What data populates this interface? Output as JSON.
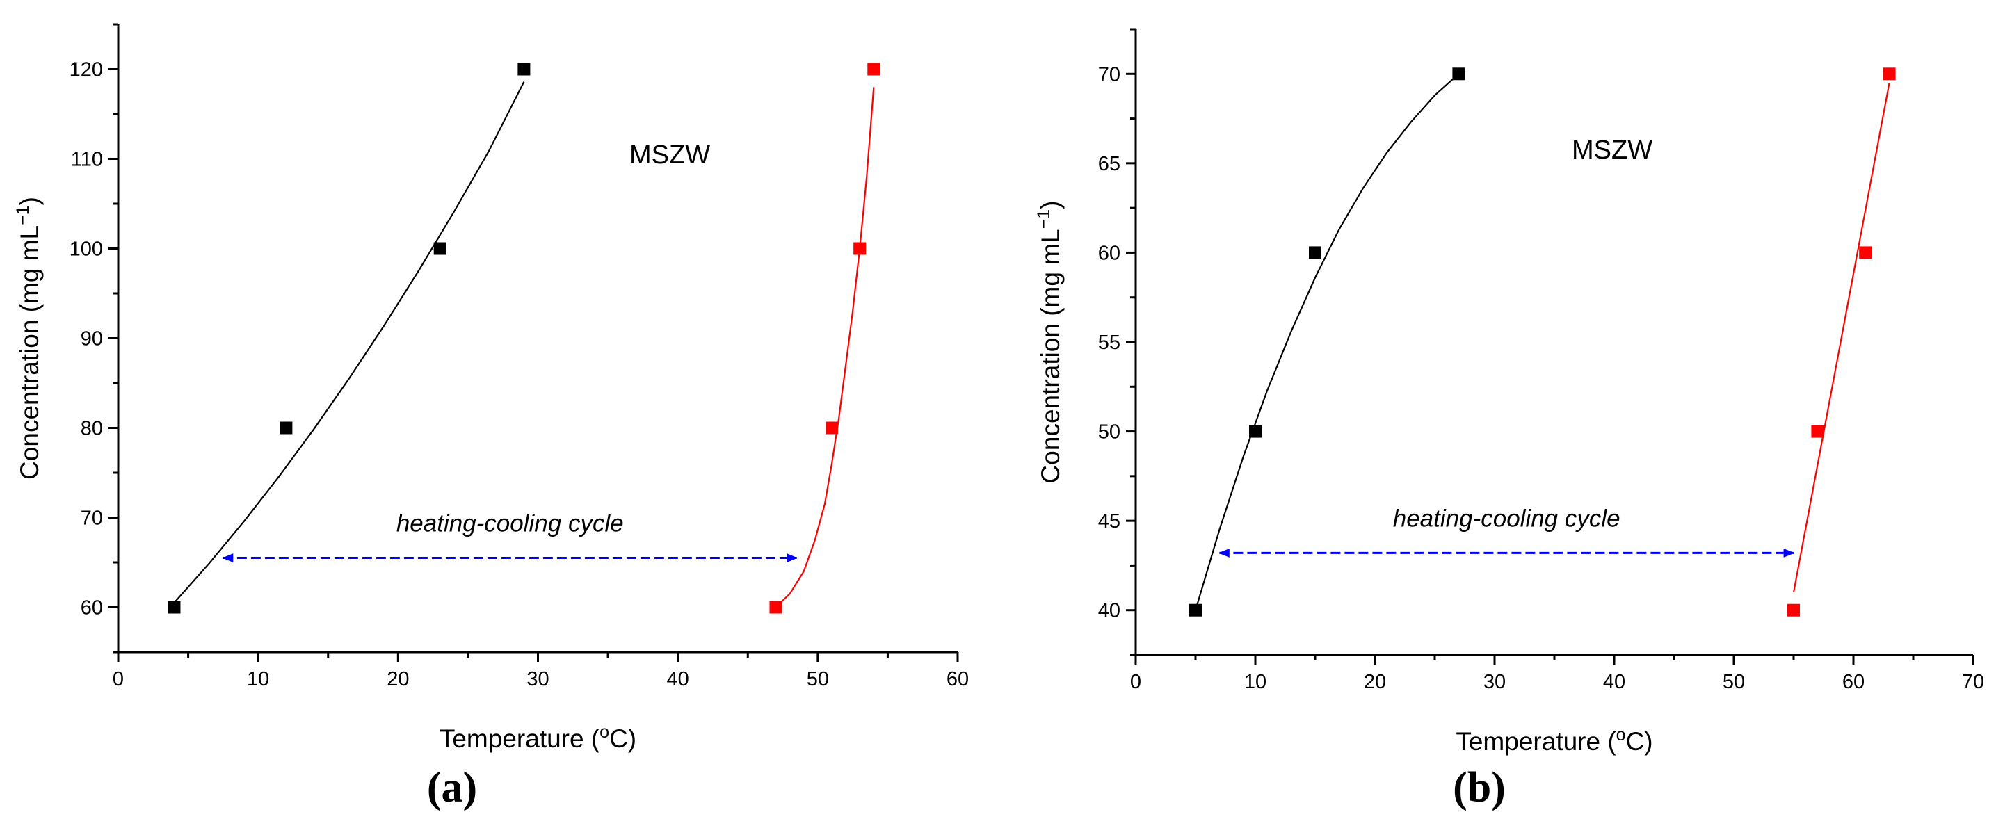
{
  "chart_data": [
    {
      "id": "a",
      "type": "scatter",
      "panel_label": "(a)",
      "xlabel": "Temperature (",
      "xlabel_sup": "o",
      "xlabel_suffix": "C)",
      "ylabel": "Concentration (mg mL",
      "ylabel_sup": "−1",
      "ylabel_suffix": ")",
      "xlim": [
        0,
        60
      ],
      "ylim": [
        55,
        125
      ],
      "xticks": [
        0,
        10,
        20,
        30,
        40,
        50,
        60
      ],
      "yticks": [
        60,
        70,
        80,
        90,
        100,
        110,
        120
      ],
      "annotation": "MSZW",
      "cycle_label": "heating-cooling cycle",
      "cycle_arrow": {
        "x": [
          7.5,
          48.5
        ],
        "y": 65.5,
        "color": "#0000ff"
      },
      "series": [
        {
          "name": "black",
          "color": "#000000",
          "x": [
            4,
            12,
            23,
            29
          ],
          "y": [
            60,
            80,
            100,
            120
          ],
          "fit": {
            "x": [
              4,
              6.5,
              9,
              11.5,
              14,
              16.5,
              19,
              21.5,
              24,
              26.5,
              29
            ],
            "y": [
              60.5,
              64.9,
              69.6,
              74.6,
              79.9,
              85.5,
              91.4,
              97.6,
              104.1,
              110.9,
              118.6
            ]
          }
        },
        {
          "name": "red",
          "color": "#ff0000",
          "x": [
            47,
            51,
            53,
            54
          ],
          "y": [
            60,
            80,
            100,
            120
          ],
          "fit": {
            "x": [
              47,
              48,
              49,
              49.8,
              50.5,
              51,
              51.5,
              52,
              52.5,
              53,
              53.5,
              54
            ],
            "y": [
              60,
              61.5,
              64,
              67.5,
              71.5,
              76,
              81,
              87,
              93,
              100,
              108,
              118
            ]
          }
        }
      ]
    },
    {
      "id": "b",
      "type": "scatter",
      "panel_label": "(b)",
      "xlabel": "Temperature (",
      "xlabel_sup": "o",
      "xlabel_suffix": "C)",
      "ylabel": "Concentration (mg mL",
      "ylabel_sup": "−1",
      "ylabel_suffix": ")",
      "xlim": [
        0,
        70
      ],
      "ylim": [
        37.5,
        72.5
      ],
      "xticks": [
        0,
        10,
        20,
        30,
        40,
        50,
        60,
        70
      ],
      "yticks": [
        40,
        45,
        50,
        55,
        60,
        65,
        70
      ],
      "annotation": "MSZW",
      "cycle_label": "heating-cooling cycle",
      "cycle_arrow": {
        "x": [
          7,
          55
        ],
        "y": 43.2,
        "color": "#0000ff"
      },
      "series": [
        {
          "name": "black",
          "color": "#000000",
          "x": [
            5,
            10,
            15,
            27
          ],
          "y": [
            40,
            50,
            60,
            70
          ],
          "fit": {
            "x": [
              5,
              7,
              9,
              11,
              13,
              15,
              17,
              19,
              21,
              23,
              25,
              27
            ],
            "y": [
              40,
              44.5,
              48.6,
              52.3,
              55.6,
              58.6,
              61.3,
              63.6,
              65.6,
              67.3,
              68.8,
              70
            ]
          }
        },
        {
          "name": "red",
          "color": "#ff0000",
          "x": [
            55,
            57,
            61,
            63
          ],
          "y": [
            40,
            50,
            60,
            70
          ],
          "fit": {
            "x": [
              55,
              63
            ],
            "y": [
              41,
              69.5
            ]
          }
        }
      ]
    }
  ]
}
